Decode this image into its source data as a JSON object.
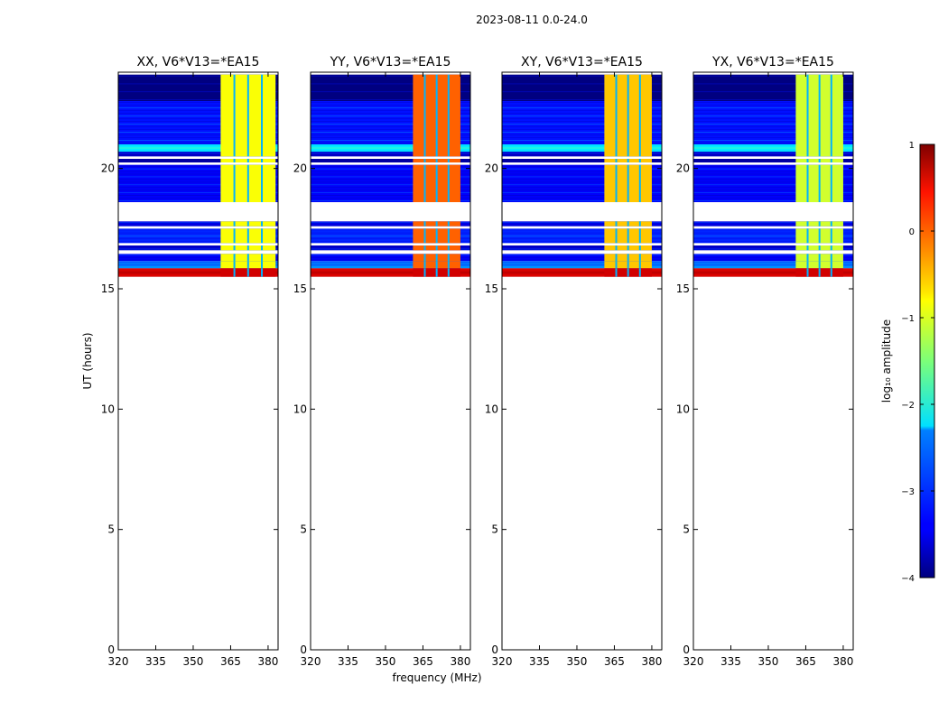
{
  "figure": {
    "suptitle": "2023-08-11 0.0-24.0",
    "xlabel": "frequency (MHz)",
    "ylabel": "UT (hours)",
    "colorbar_label": "log₁₀ amplitude"
  },
  "chart_data": {
    "type": "heatmap",
    "xlim": [
      320,
      384
    ],
    "ylim": [
      0,
      24
    ],
    "x_ticks": [
      320,
      335,
      350,
      365,
      380
    ],
    "y_ticks": [
      0,
      5,
      10,
      15,
      20
    ],
    "colorbar": {
      "range": [
        -4,
        1
      ],
      "ticks": [
        -4,
        -3,
        -2,
        -1,
        0,
        1
      ],
      "colormap": "jet"
    },
    "time_rows": [
      {
        "t0": 22.8,
        "t1": 23.9,
        "v": -4
      },
      {
        "t0": 21.0,
        "t1": 22.8,
        "v": -3.3
      },
      {
        "t0": 20.7,
        "t1": 21.0,
        "v": -2.2
      },
      {
        "t0": 20.5,
        "t1": 20.7,
        "v": -3.6
      },
      {
        "t0": 20.25,
        "t1": 20.4,
        "v": -3.8
      },
      {
        "t0": 18.6,
        "t1": 20.15,
        "v": -3.4
      },
      {
        "t0": 17.6,
        "t1": 17.8,
        "v": -3.5
      },
      {
        "t0": 16.9,
        "t1": 17.5,
        "v": -3.2
      },
      {
        "t0": 16.6,
        "t1": 16.8,
        "v": -3.6
      },
      {
        "t0": 16.15,
        "t1": 16.45,
        "v": -3.4
      },
      {
        "t0": 15.85,
        "t1": 16.15,
        "v": -2.8
      },
      {
        "t0": 15.5,
        "t1": 15.85,
        "v": 0.6
      }
    ],
    "panels": [
      {
        "title": "XX, V6*V13=*EA15",
        "band": {
          "f0": 361,
          "f1": 383,
          "v": -0.9
        }
      },
      {
        "title": "YY, V6*V13=*EA15",
        "band": {
          "f0": 361,
          "f1": 380,
          "v": -0.1
        }
      },
      {
        "title": "XY, V6*V13=*EA15",
        "band": {
          "f0": 361,
          "f1": 380,
          "v": -0.6
        }
      },
      {
        "title": "YX, V6*V13=*EA15",
        "band": {
          "f0": 361,
          "f1": 380,
          "v": -1.1
        }
      }
    ]
  }
}
